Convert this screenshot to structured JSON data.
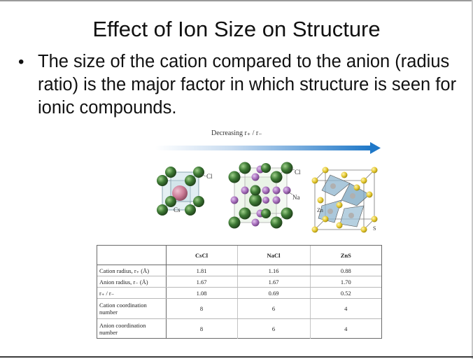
{
  "slide": {
    "title": "Effect of Ion Size on Structure",
    "bullet_marker": "•",
    "bullet": "The size of the cation compared to the anion (radius ratio) is the major factor in which structure is seen for ionic compounds."
  },
  "figure": {
    "arrow_caption": "Decreasing r₊ / r₋",
    "labels": {
      "cscl_anion": "Cl",
      "cscl_cation": "Cs",
      "nacl_anion": "Cl",
      "nacl_cation": "Na",
      "zns_cation": "Zn",
      "zns_anion": "S"
    },
    "colors": {
      "anion_green": "#3e7a35",
      "cation_purple": "#a36ab8",
      "zn_gray": "#b0b0b0",
      "s_yellow": "#e2c52a",
      "arrow_blue": "#1f78c8",
      "cs_pink": "#c97894"
    }
  },
  "table": {
    "headers": [
      "",
      "CsCl",
      "NaCl",
      "ZnS"
    ],
    "rows": [
      {
        "label": "Cation radius, r₊ (Å)",
        "values": [
          "1.81",
          "1.16",
          "0.88"
        ]
      },
      {
        "label": "Anion radius, r₋ (Å)",
        "values": [
          "1.67",
          "1.67",
          "1.70"
        ]
      },
      {
        "label": "r₊ / r₋",
        "values": [
          "1.08",
          "0.69",
          "0.52"
        ]
      },
      {
        "label": "Cation coordination number",
        "values": [
          "8",
          "6",
          "4"
        ]
      },
      {
        "label": "Anion coordination number",
        "values": [
          "8",
          "6",
          "4"
        ]
      }
    ]
  }
}
